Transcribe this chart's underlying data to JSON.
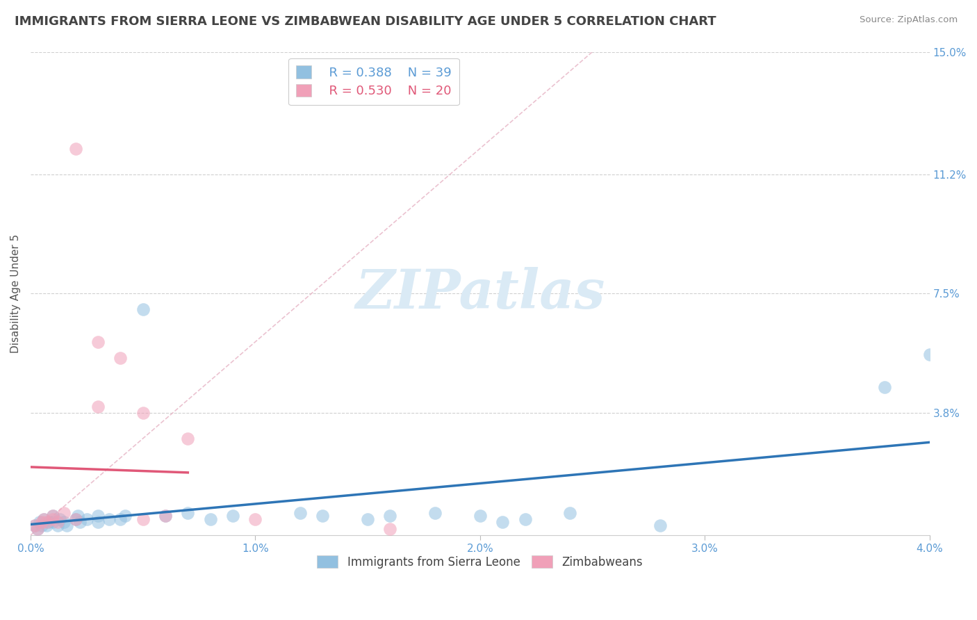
{
  "title": "IMMIGRANTS FROM SIERRA LEONE VS ZIMBABWEAN DISABILITY AGE UNDER 5 CORRELATION CHART",
  "source": "Source: ZipAtlas.com",
  "ylabel": "Disability Age Under 5",
  "xlim": [
    0.0,
    0.04
  ],
  "ylim": [
    0.0,
    0.15
  ],
  "ytick_vals": [
    0.038,
    0.075,
    0.112,
    0.15
  ],
  "ytick_labels": [
    "3.8%",
    "7.5%",
    "11.2%",
    "15.0%"
  ],
  "xtick_vals": [
    0.0,
    0.01,
    0.02,
    0.03,
    0.04
  ],
  "xtick_labels": [
    "0.0%",
    "1.0%",
    "2.0%",
    "3.0%",
    "4.0%"
  ],
  "background_color": "#ffffff",
  "title_color": "#444444",
  "axis_label_color": "#5b9bd5",
  "watermark_text": "ZIPatlas",
  "watermark_color": "#daeaf5",
  "legend_r1": "R = 0.388",
  "legend_n1": "N = 39",
  "legend_r2": "R = 0.530",
  "legend_n2": "N = 20",
  "series1_color": "#92c0e0",
  "series2_color": "#f0a0b8",
  "line1_color": "#2e75b6",
  "line2_color": "#e05878",
  "ref_line_color": "#e8b0c0",
  "grid_color": "#d0d0d0",
  "sl_x": [
    0.0002,
    0.0003,
    0.0004,
    0.0005,
    0.0006,
    0.0007,
    0.0008,
    0.001,
    0.001,
    0.0012,
    0.0013,
    0.0015,
    0.0016,
    0.002,
    0.0021,
    0.0022,
    0.0025,
    0.003,
    0.003,
    0.0035,
    0.004,
    0.0042,
    0.005,
    0.006,
    0.007,
    0.008,
    0.009,
    0.012,
    0.013,
    0.015,
    0.016,
    0.018,
    0.02,
    0.021,
    0.022,
    0.024,
    0.028,
    0.038,
    0.04
  ],
  "sl_y": [
    0.003,
    0.002,
    0.004,
    0.003,
    0.005,
    0.003,
    0.004,
    0.004,
    0.006,
    0.003,
    0.005,
    0.004,
    0.003,
    0.005,
    0.006,
    0.004,
    0.005,
    0.004,
    0.006,
    0.005,
    0.005,
    0.006,
    0.07,
    0.006,
    0.007,
    0.005,
    0.006,
    0.007,
    0.006,
    0.005,
    0.006,
    0.007,
    0.006,
    0.004,
    0.005,
    0.007,
    0.003,
    0.046,
    0.056
  ],
  "zim_x": [
    0.0002,
    0.0003,
    0.0005,
    0.0006,
    0.0007,
    0.001,
    0.001,
    0.0012,
    0.0015,
    0.002,
    0.002,
    0.003,
    0.003,
    0.004,
    0.005,
    0.005,
    0.006,
    0.007,
    0.01,
    0.016
  ],
  "zim_y": [
    0.003,
    0.002,
    0.004,
    0.005,
    0.004,
    0.005,
    0.006,
    0.004,
    0.007,
    0.005,
    0.12,
    0.06,
    0.04,
    0.055,
    0.038,
    0.005,
    0.006,
    0.03,
    0.005,
    0.002
  ]
}
